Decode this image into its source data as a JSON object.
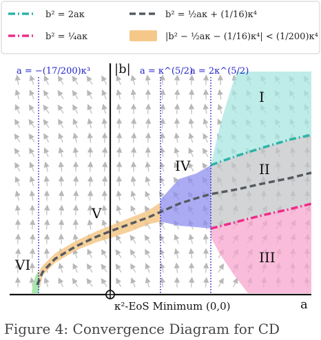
{
  "legend": {
    "items": [
      {
        "id": "teal",
        "label": "b² = 2aκ",
        "color": "#2bb3a8",
        "style": "dashdot"
      },
      {
        "id": "gray",
        "label": "b² = ½aκ + (1/16)κ⁴",
        "color": "#555a5f",
        "style": "dashed"
      },
      {
        "id": "pink",
        "label": "b² = ¼aκ",
        "color": "#ee2b88",
        "style": "dashdot"
      },
      {
        "id": "band",
        "label": "|b² − ½aκ − (1/16)κ⁴| < (1/200)κ⁴",
        "color": "#f5c88a",
        "style": "band"
      }
    ]
  },
  "axes": {
    "y_label": "|b|",
    "x_label": "a",
    "origin_label": "κ²-EoS Minimum (0,0)"
  },
  "vlines": [
    {
      "label": "a = −(17/200)κ³",
      "color": "#2222cc"
    },
    {
      "label": "a = κ^(5/2)",
      "color": "#2222cc"
    },
    {
      "label": "a = 2κ^(5/2)",
      "color": "#2222cc"
    }
  ],
  "regions": {
    "I": {
      "label": "I",
      "color": "#a8e6e0"
    },
    "II": {
      "label": "II",
      "color": "#c4c6c8"
    },
    "III": {
      "label": "III",
      "color": "#f7a6cd"
    },
    "IV": {
      "label": "IV",
      "color": "#8f8ff0"
    },
    "V": {
      "label": "V",
      "color": "#f5c88a"
    },
    "VI": {
      "label": "VI",
      "color": "#9fe6a4"
    }
  },
  "caption": "Figure 4: Convergence Diagram for CD"
}
